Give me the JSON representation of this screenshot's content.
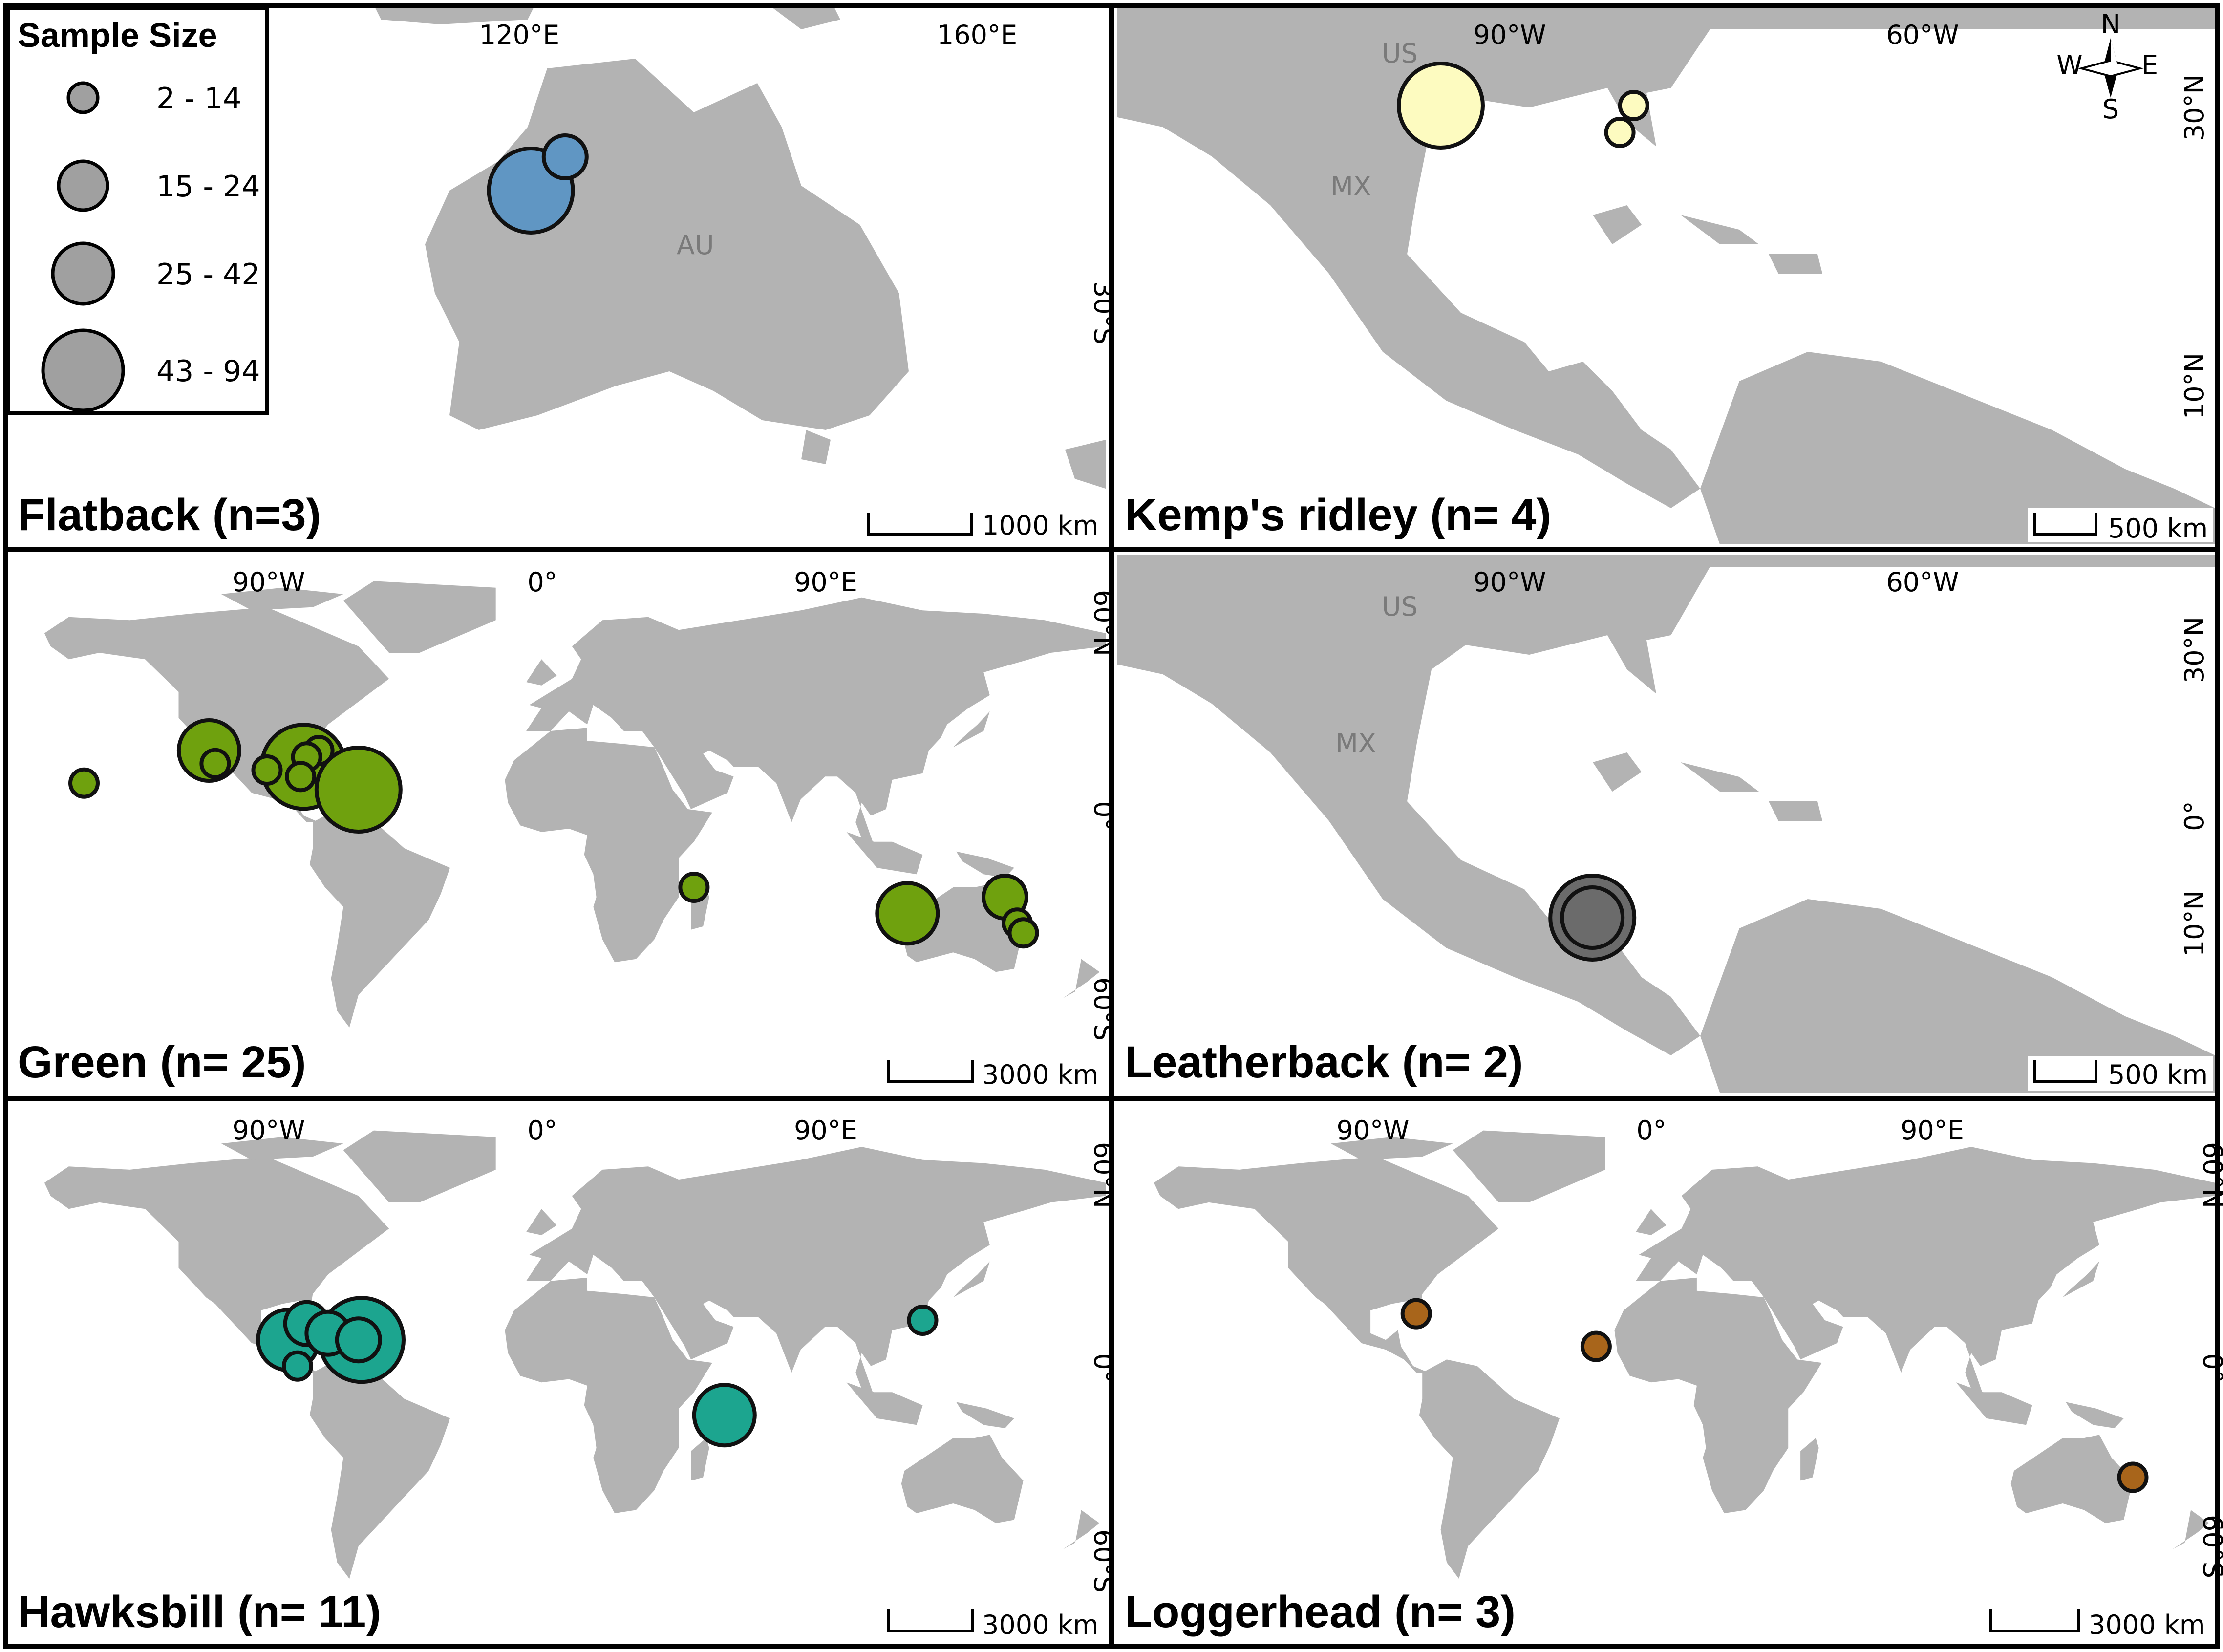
{
  "legend": {
    "title": "Sample Size",
    "classes": [
      {
        "label": "2 - 14",
        "radius_class": 1
      },
      {
        "label": "15 - 24",
        "radius_class": 2
      },
      {
        "label": "25 - 42",
        "radius_class": 3
      },
      {
        "label": "43 - 94",
        "radius_class": 4
      }
    ]
  },
  "compass": {
    "n": "N",
    "s": "S",
    "e": "E",
    "w": "W"
  },
  "colors": {
    "flatback": "#6096c3",
    "kemps": "#fdfbc0",
    "green": "#6fa10e",
    "leatherback": "#6b6b6b",
    "hawksbill": "#1ca58f",
    "loggerhead": "#a8651b",
    "land": "#b3b3b3"
  },
  "panels": {
    "flatback": {
      "title": "Flatback (n=3)",
      "top_labels": [
        "120°E",
        "160°E"
      ],
      "side_labels": [
        "30°S"
      ],
      "countries": [
        "AU"
      ],
      "scale": "1000 km",
      "sites": [
        {
          "lon": 119,
          "lat": -20,
          "size_class": 4
        },
        {
          "lon": 122,
          "lat": -17,
          "size_class": 2
        }
      ]
    },
    "kemps": {
      "title": "Kemp's ridley (n= 4)",
      "top_labels": [
        "90°W",
        "60°W"
      ],
      "side_labels": [
        "30°N",
        "10°N"
      ],
      "countries": [
        "US",
        "MX"
      ],
      "scale": "500 km",
      "sites": [
        {
          "lon": -95,
          "lat": 30,
          "size_class": 4
        },
        {
          "lon": -81,
          "lat": 30,
          "size_class": 1
        },
        {
          "lon": -82,
          "lat": 28,
          "size_class": 1
        }
      ]
    },
    "green": {
      "title": "Green (n= 25)",
      "top_labels": [
        "90°W",
        "0°",
        "90°E"
      ],
      "side_labels": [
        "60°N",
        "0°",
        "60°S"
      ],
      "scale": "3000 km",
      "sites": [
        {
          "lon": -155,
          "lat": 20,
          "size_class": 1
        },
        {
          "lon": -114,
          "lat": 30,
          "size_class": 3
        },
        {
          "lon": -112,
          "lat": 26,
          "size_class": 1
        },
        {
          "lon": -95,
          "lat": 24,
          "size_class": 1
        },
        {
          "lon": -83,
          "lat": 25,
          "size_class": 4
        },
        {
          "lon": -78,
          "lat": 30,
          "size_class": 1
        },
        {
          "lon": -82,
          "lat": 28,
          "size_class": 1
        },
        {
          "lon": -84,
          "lat": 22,
          "size_class": 1
        },
        {
          "lon": -65,
          "lat": 18,
          "size_class": 4
        },
        {
          "lon": 45,
          "lat": -12,
          "size_class": 1
        },
        {
          "lon": 115,
          "lat": -20,
          "size_class": 3
        },
        {
          "lon": 147,
          "lat": -15,
          "size_class": 2
        },
        {
          "lon": 151,
          "lat": -23,
          "size_class": 1
        },
        {
          "lon": 153,
          "lat": -26,
          "size_class": 1
        }
      ]
    },
    "leatherback": {
      "title": "Leatherback (n= 2)",
      "top_labels": [
        "90°W",
        "60°W"
      ],
      "side_labels": [
        "30°N",
        "0°",
        "10°N"
      ],
      "countries": [
        "US",
        "MX"
      ],
      "scale": "500 km",
      "sites": [
        {
          "lon": -84,
          "lat": 10,
          "size_class": 4
        },
        {
          "lon": -84,
          "lat": 10,
          "size_class": 3
        }
      ]
    },
    "hawksbill": {
      "title": "Hawksbill (n= 11)",
      "top_labels": [
        "90°W",
        "0°",
        "90°E"
      ],
      "side_labels": [
        "60°N",
        "0°",
        "60°S"
      ],
      "scale": "3000 km",
      "sites": [
        {
          "lon": -88,
          "lat": 18,
          "size_class": 3
        },
        {
          "lon": -82,
          "lat": 23,
          "size_class": 2
        },
        {
          "lon": -85,
          "lat": 10,
          "size_class": 1
        },
        {
          "lon": -75,
          "lat": 20,
          "size_class": 2
        },
        {
          "lon": -64,
          "lat": 18,
          "size_class": 4
        },
        {
          "lon": -65,
          "lat": 18,
          "size_class": 2
        },
        {
          "lon": 55,
          "lat": -5,
          "size_class": 3
        },
        {
          "lon": 120,
          "lat": 24,
          "size_class": 1
        }
      ]
    },
    "loggerhead": {
      "title": "Loggerhead (n= 3)",
      "top_labels": [
        "90°W",
        "0°",
        "90°E"
      ],
      "side_labels": [
        "60°N",
        "0°",
        "60°S"
      ],
      "scale": "3000 km",
      "sites": [
        {
          "lon": -82,
          "lat": 26,
          "size_class": 1
        },
        {
          "lon": -23,
          "lat": 16,
          "size_class": 1
        },
        {
          "lon": 153,
          "lat": -24,
          "size_class": 1
        }
      ]
    }
  }
}
